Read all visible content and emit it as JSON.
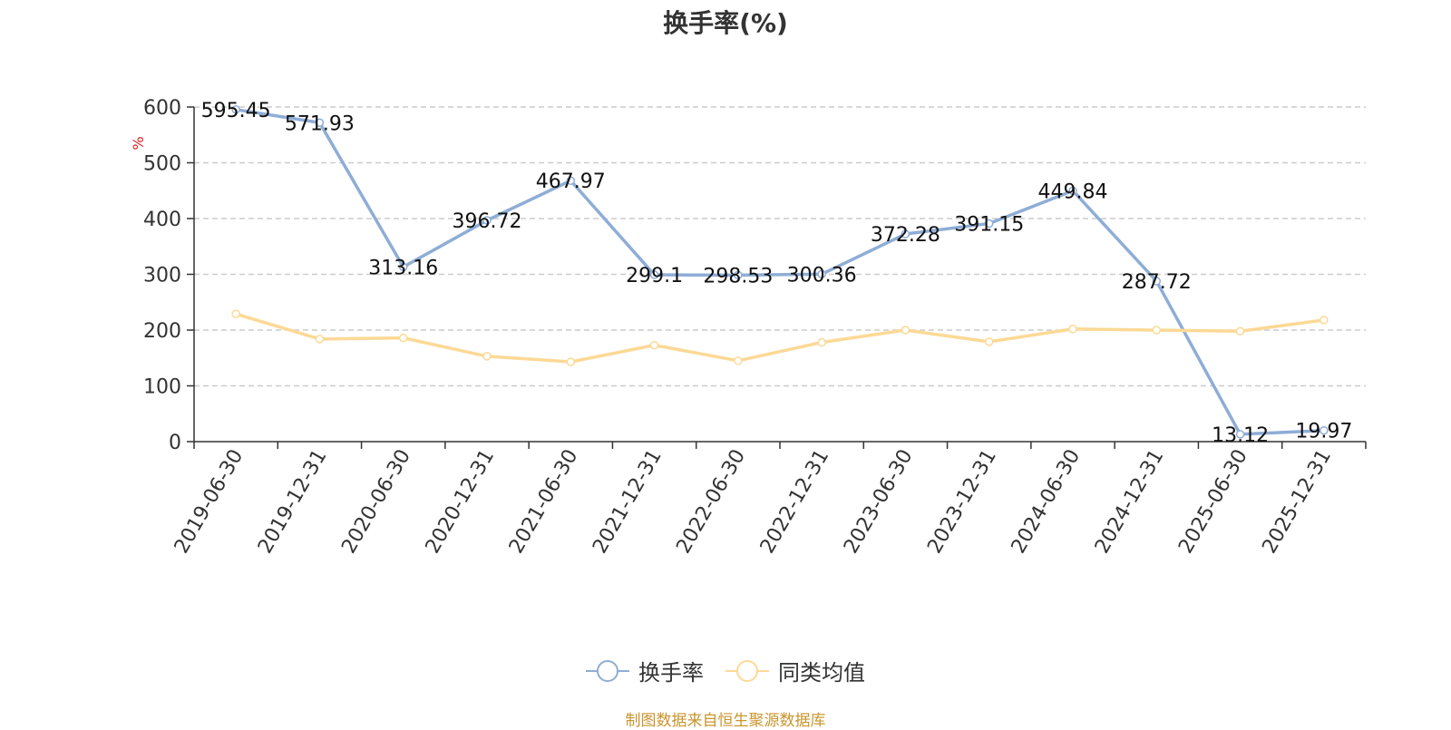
{
  "colors": {
    "series_1": "#8eadd6",
    "series_2": "#fcd995",
    "axis": "#333333",
    "grid": "#cccccc",
    "unit_label": "#e02020",
    "source_note": "#c9952e"
  },
  "legend": {
    "items": [
      {
        "label": "换手率",
        "icon": "circle-line-marker"
      },
      {
        "label": "同类均值",
        "icon": "circle-line-marker"
      }
    ]
  },
  "source_note": "制图数据来自恒生聚源数据库",
  "chart_data": {
    "type": "line",
    "title": "换手率(%)",
    "ylabel": "%",
    "xlabel": "",
    "ylim": [
      0,
      600
    ],
    "yticks": [
      0,
      100,
      200,
      300,
      400,
      500,
      600
    ],
    "grid": true,
    "legend_position": "bottom-center",
    "categories": [
      "2019-06-30",
      "2019-12-31",
      "2020-06-30",
      "2020-12-31",
      "2021-06-30",
      "2021-12-31",
      "2022-06-30",
      "2022-12-31",
      "2023-06-30",
      "2023-12-31",
      "2024-06-30",
      "2024-12-31",
      "2025-06-30",
      "2025-12-31"
    ],
    "series": [
      {
        "name": "换手率",
        "values": [
          595.45,
          571.93,
          313.16,
          396.72,
          467.97,
          299.1,
          298.53,
          300.36,
          372.28,
          391.15,
          449.84,
          287.72,
          13.12,
          19.97
        ],
        "data_labels": [
          "595.45",
          "571.93",
          "313.16",
          "396.72",
          "467.97",
          "299.1",
          "298.53",
          "300.36",
          "372.28",
          "391.15",
          "449.84",
          "287.72",
          "13.12",
          "19.97"
        ]
      },
      {
        "name": "同类均值",
        "values": [
          229,
          184,
          186,
          153,
          143,
          173,
          145,
          178,
          200,
          179,
          202,
          200,
          198,
          218
        ]
      }
    ]
  }
}
